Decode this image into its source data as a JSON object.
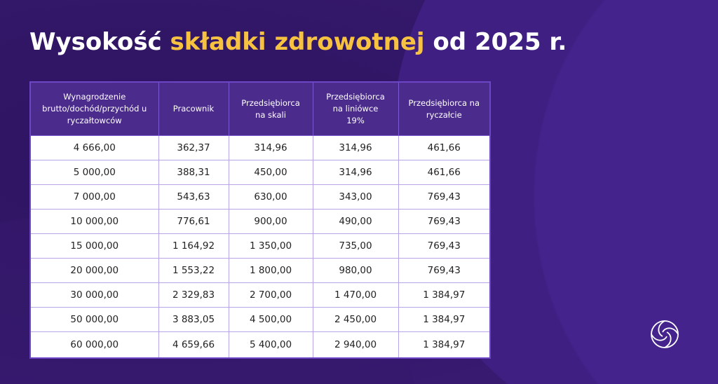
{
  "title": {
    "part1": "Wysokość ",
    "highlight": "składki zdrowotnej",
    "part2": " od 2025 r."
  },
  "colors": {
    "background": "#331768",
    "highlight": "#f7c23f",
    "header": "#4b2b8c"
  },
  "table": {
    "headers": [
      "Wynagrodzenie brutto/dochód/przychód u ryczałtowców",
      "Pracownik",
      "Przedsiębiorca na skali",
      "Przedsiębiorca na liniówce 19%",
      "Przedsiębiorca na ryczałcie"
    ],
    "rows": [
      [
        "4 666,00",
        "362,37",
        "314,96",
        "314,96",
        "461,66"
      ],
      [
        "5 000,00",
        "388,31",
        "450,00",
        "314,96",
        "461,66"
      ],
      [
        "7 000,00",
        "543,63",
        "630,00",
        "343,00",
        "769,43"
      ],
      [
        "10 000,00",
        "776,61",
        "900,00",
        "490,00",
        "769,43"
      ],
      [
        "15 000,00",
        "1 164,92",
        "1 350,00",
        "735,00",
        "769,43"
      ],
      [
        "20 000,00",
        "1 553,22",
        "1 800,00",
        "980,00",
        "769,43"
      ],
      [
        "30 000,00",
        "2 329,83",
        "2 700,00",
        "1 470,00",
        "1 384,97"
      ],
      [
        "50 000,00",
        "3 883,05",
        "4 500,00",
        "2 450,00",
        "1 384,97"
      ],
      [
        "60 000,00",
        "4 659,66",
        "5 400,00",
        "2 940,00",
        "1 384,97"
      ]
    ]
  },
  "logo": {
    "icon": "aperture-spiral-logo"
  }
}
